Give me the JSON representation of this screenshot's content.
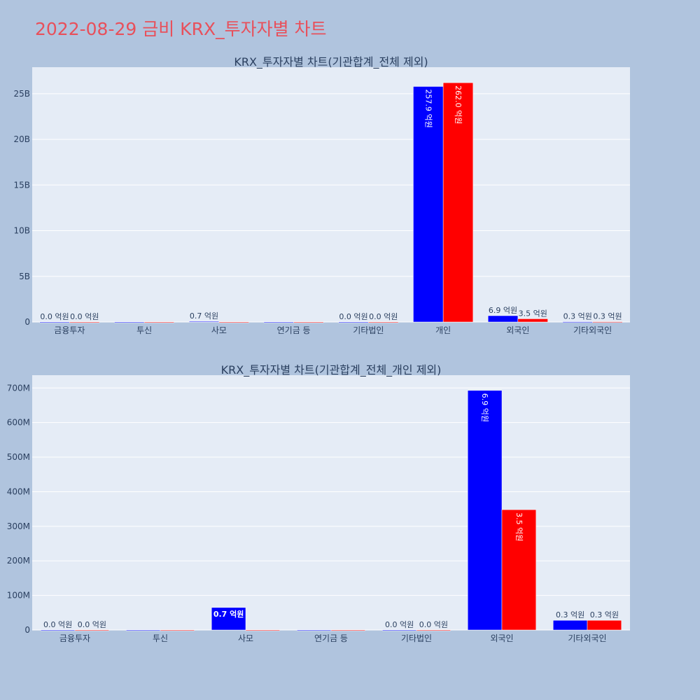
{
  "title": "2022-08-29 금비 KRX_투자자별 차트",
  "chart_data": [
    {
      "type": "bar",
      "title": "KRX_투자자별 차트(기관합계_전체 제외)",
      "categories": [
        "금융투자",
        "투신",
        "사모",
        "연기금 등",
        "기타법인",
        "개인",
        "외국인",
        "기타외국인"
      ],
      "series": [
        {
          "color": "#0000ff",
          "values": [
            0,
            0,
            70000000,
            0,
            0,
            25790000000,
            690000000,
            30000000
          ],
          "labels": [
            "0.0 억원",
            "",
            "0.7 억원",
            "",
            "0.0 억원",
            "257.9 억원",
            "6.9 억원",
            "0.3 억원"
          ]
        },
        {
          "color": "#ff0000",
          "values": [
            0,
            0,
            0,
            0,
            0,
            26200000000,
            350000000,
            30000000
          ],
          "labels": [
            "0.0 억원",
            "",
            "",
            "",
            "0.0 억원",
            "262.0 억원",
            "3.5 억원",
            "0.3 억원"
          ]
        }
      ],
      "ylim": [
        0,
        27900000000
      ],
      "yticks": [
        0,
        5000000000,
        10000000000,
        15000000000,
        20000000000,
        25000000000
      ],
      "ytick_labels": [
        "0",
        "5B",
        "10B",
        "15B",
        "20B",
        "25B"
      ],
      "grid": true
    },
    {
      "type": "bar",
      "title": "KRX_투자자별 차트(기관합계_전체_개인 제외)",
      "categories": [
        "금융투자",
        "투신",
        "사모",
        "연기금 등",
        "기타법인",
        "외국인",
        "기타외국인"
      ],
      "series": [
        {
          "color": "#0000ff",
          "values": [
            0,
            0,
            65000000,
            0,
            0,
            693000000,
            28000000
          ],
          "labels": [
            "0.0 억원",
            "",
            "0.7 억원",
            "",
            "0.0 억원",
            "6.9 억원",
            "0.3 억원"
          ]
        },
        {
          "color": "#ff0000",
          "values": [
            0,
            0,
            0,
            0,
            0,
            348000000,
            28000000
          ],
          "labels": [
            "0.0 억원",
            "",
            "",
            "",
            "0.0 억원",
            "3.5 억원",
            "0.3 억원"
          ]
        }
      ],
      "ylim": [
        0,
        737000000
      ],
      "yticks": [
        0,
        100000000,
        200000000,
        300000000,
        400000000,
        500000000,
        600000000,
        700000000
      ],
      "ytick_labels": [
        "0",
        "100M",
        "200M",
        "300M",
        "400M",
        "500M",
        "600M",
        "700M"
      ],
      "grid": true
    }
  ]
}
